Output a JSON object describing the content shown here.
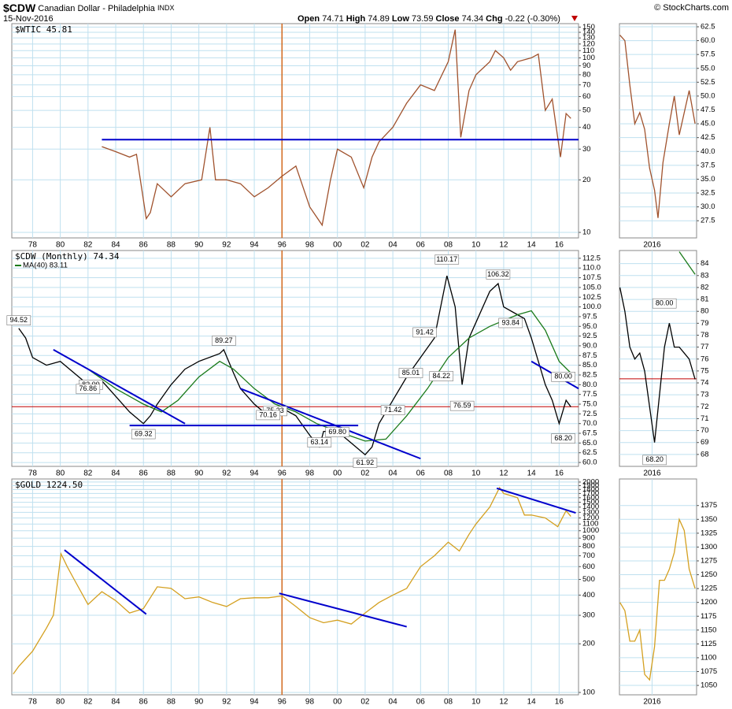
{
  "header": {
    "symbol": "$CDW",
    "name": "Canadian Dollar - Philadelphia",
    "exchange": "INDX",
    "date": "15-Nov-2016",
    "credit": "© StockCharts.com",
    "quote": [
      {
        "label": "Open",
        "value": 74.71
      },
      {
        "label": "High",
        "value": 74.89
      },
      {
        "label": "Low",
        "value": 73.59
      },
      {
        "label": "Close",
        "value": 74.34
      },
      {
        "label": "Chg",
        "value": "-0.22 (-0.30%)"
      }
    ]
  },
  "chart_data": [
    {
      "type": "line",
      "log": true,
      "grid": true,
      "x": [
        1983.0,
        1984.0,
        1985.0,
        1985.5,
        1986.2,
        1986.5,
        1987.0,
        1988.0,
        1989.0,
        1990.2,
        1990.8,
        1991.2,
        1992.0,
        1993.0,
        1994.0,
        1995.0,
        1996.0,
        1997.0,
        1998.0,
        1998.9,
        1999.5,
        2000.0,
        2001.0,
        2001.9,
        2002.5,
        2003.0,
        2004.0,
        2005.0,
        2006.0,
        2007.0,
        2008.0,
        2008.5,
        2008.9,
        2009.5,
        2010.0,
        2011.0,
        2011.4,
        2012.0,
        2012.5,
        2013.0,
        2014.0,
        2014.5,
        2015.0,
        2015.5,
        2016.1,
        2016.5,
        2016.85
      ],
      "series": [
        {
          "name": "$WTIC 45.81",
          "color": "#a0522d",
          "values": [
            31,
            29,
            27,
            28,
            12,
            13,
            19,
            16,
            19,
            20,
            40,
            20,
            20,
            19,
            16,
            18,
            21,
            24,
            14,
            11,
            20,
            30,
            27,
            18,
            27,
            33,
            40,
            55,
            70,
            65,
            95,
            145,
            35,
            65,
            80,
            95,
            110,
            100,
            85,
            95,
            100,
            105,
            50,
            58,
            27,
            48,
            45
          ]
        }
      ],
      "xlim": [
        1976.5,
        2017.4
      ],
      "ylim": [
        9.3,
        157
      ],
      "xticks": [
        {
          "value": 1978,
          "label": "78"
        },
        {
          "value": 1980,
          "label": "80"
        },
        {
          "value": 1982,
          "label": "82"
        },
        {
          "value": 1984,
          "label": "84"
        },
        {
          "value": 1986,
          "label": "86"
        },
        {
          "value": 1988,
          "label": "88"
        },
        {
          "value": 1990,
          "label": "90"
        },
        {
          "value": 1992,
          "label": "92"
        },
        {
          "value": 1994,
          "label": "94"
        },
        {
          "value": 1996,
          "label": "96"
        },
        {
          "value": 1998,
          "label": "98"
        },
        {
          "value": 2000,
          "label": "00"
        },
        {
          "value": 2002,
          "label": "02"
        },
        {
          "value": 2004,
          "label": "04"
        },
        {
          "value": 2006,
          "label": "06"
        },
        {
          "value": 2008,
          "label": "08"
        },
        {
          "value": 2010,
          "label": "10"
        },
        {
          "value": 2012,
          "label": "12"
        },
        {
          "value": 2014,
          "label": "14"
        },
        {
          "value": 2016,
          "label": "16"
        }
      ],
      "yticks": [
        10,
        20,
        30,
        40,
        50,
        60,
        70,
        80,
        90,
        100,
        110,
        120,
        130,
        140,
        150
      ],
      "vlines": [
        {
          "value": 1996,
          "color": "#d2691e"
        }
      ],
      "trendlines": [
        {
          "x": [
            1983.0,
            2017.4
          ],
          "y": [
            34,
            34
          ],
          "color": "#0000cc"
        }
      ]
    },
    {
      "type": "line",
      "grid": true,
      "x": [
        2015.35,
        2015.45,
        2015.55,
        2015.65,
        2015.75,
        2015.85,
        2015.95,
        2016.05,
        2016.12,
        2016.22,
        2016.35,
        2016.45,
        2016.55,
        2016.65,
        2016.75,
        2016.87
      ],
      "series": [
        {
          "color": "#a0522d",
          "values": [
            61,
            60,
            52,
            45,
            47,
            44,
            37,
            33,
            28,
            38,
            45,
            50,
            43,
            47,
            51,
            45
          ]
        }
      ],
      "xlim": [
        2015.34,
        2016.9
      ],
      "ylim": [
        24.4,
        63.07
      ],
      "xticks": [
        {
          "value": 2016,
          "label": "2016"
        }
      ],
      "yticks": [
        {
          "value": 27.5,
          "label": "27.5"
        },
        {
          "value": 30,
          "label": "30.0"
        },
        {
          "value": 32.5,
          "label": "32.5"
        },
        {
          "value": 35,
          "label": "35.0"
        },
        {
          "value": 37.5,
          "label": "37.5"
        },
        {
          "value": 40,
          "label": "40.0"
        },
        {
          "value": 42.5,
          "label": "42.5"
        },
        {
          "value": 45,
          "label": "45.0"
        },
        {
          "value": 47.5,
          "label": "47.5"
        },
        {
          "value": 50,
          "label": "50.0"
        },
        {
          "value": 52.5,
          "label": "52.5"
        },
        {
          "value": 55,
          "label": "55.0"
        },
        {
          "value": 57.5,
          "label": "57.5"
        },
        {
          "value": 60,
          "label": "60.0"
        },
        {
          "value": 62.5,
          "label": "62.5"
        }
      ]
    },
    {
      "type": "line",
      "grid": true,
      "x": [
        1977.0,
        1977.5,
        1978.0,
        1979.0,
        1980.0,
        1981.0,
        1982.0,
        1983.0,
        1984.0,
        1985.0,
        1986.0,
        1986.5,
        1987.0,
        1988.0,
        1989.0,
        1990.0,
        1991.5,
        1991.8,
        1992.5,
        1993.0,
        1994.0,
        1995.0,
        1995.5,
        1996.0,
        1997.0,
        1998.0,
        1998.7,
        1999.0,
        2000.0,
        2001.0,
        2002.0,
        2002.5,
        2003.0,
        2004.0,
        2005.0,
        2006.0,
        2007.0,
        2007.9,
        2008.5,
        2009.0,
        2009.5,
        2010.0,
        2011.0,
        2011.6,
        2012.0,
        2013.0,
        2013.5,
        2014.0,
        2015.0,
        2015.5,
        2016.0,
        2016.5,
        2016.85
      ],
      "series": [
        {
          "name": "$CDW (Monthly) 74.34",
          "color": "#000000",
          "values": [
            94.5,
            92,
            87,
            85,
            86,
            83,
            80,
            81,
            77,
            73,
            70,
            72,
            75,
            80,
            84,
            86,
            88,
            89,
            83,
            79,
            75,
            72,
            74,
            74,
            72,
            67,
            64,
            68,
            68,
            65,
            62,
            64,
            70,
            76,
            82,
            87,
            92,
            108,
            100,
            80,
            92,
            96,
            104,
            106,
            100,
            98,
            97,
            92,
            80,
            76,
            70,
            76,
            74.3
          ]
        },
        {
          "name": "MA(40) 83.11",
          "color": "#1a7a1a",
          "x": [
            1980.5,
            1982.0,
            1984.0,
            1986.0,
            1987.3,
            1988.5,
            1990.0,
            1991.5,
            1992.5,
            1994.0,
            1995.5,
            1997.0,
            1998.5,
            2000.0,
            2002.0,
            2003.5,
            2005.0,
            2006.5,
            2008.0,
            2009.5,
            2011.0,
            2013.0,
            2014.0,
            2015.0,
            2016.0,
            2016.85
          ],
          "values": [
            87,
            84,
            79,
            75,
            73,
            76,
            82,
            86,
            84,
            79,
            75,
            73,
            70,
            68,
            65.5,
            66,
            72,
            79,
            87,
            92,
            95,
            98,
            99,
            94,
            86,
            83
          ]
        }
      ],
      "xlim": [
        1976.5,
        2017.4
      ],
      "ylim": [
        59,
        114.5
      ],
      "yticks": [
        {
          "value": 60,
          "label": "60.0"
        },
        {
          "value": 62.5,
          "label": "62.5"
        },
        {
          "value": 65,
          "label": "65.0"
        },
        {
          "value": 67.5,
          "label": "67.5"
        },
        {
          "value": 70,
          "label": "70.0"
        },
        {
          "value": 72.5,
          "label": "72.5"
        },
        {
          "value": 75,
          "label": "75.0"
        },
        {
          "value": 77.5,
          "label": "77.5"
        },
        {
          "value": 80,
          "label": "80.0"
        },
        {
          "value": 82.5,
          "label": "82.5"
        },
        {
          "value": 85,
          "label": "85.0"
        },
        {
          "value": 87.5,
          "label": "87.5"
        },
        {
          "value": 90,
          "label": "90.0"
        },
        {
          "value": 92.5,
          "label": "92.5"
        },
        {
          "value": 95,
          "label": "95.0"
        },
        {
          "value": 97.5,
          "label": "97.5"
        },
        {
          "value": 100,
          "label": "100.0"
        },
        {
          "value": 102.5,
          "label": "102.5"
        },
        {
          "value": 105,
          "label": "105.0"
        },
        {
          "value": 107.5,
          "label": "107.5"
        },
        {
          "value": 110,
          "label": "110.0"
        },
        {
          "value": 112.5,
          "label": "112.5"
        }
      ],
      "vlines": [
        {
          "value": 1996,
          "color": "#d2691e"
        }
      ],
      "hlines": [
        {
          "value": 74.34,
          "color": "#c00000"
        }
      ],
      "trendlines": [
        {
          "x": [
            1979.5,
            1989.0
          ],
          "y": [
            89,
            70
          ],
          "color": "#0000cc"
        },
        {
          "x": [
            1985.0,
            2001.5
          ],
          "y": [
            69.5,
            69.5
          ],
          "color": "#0000cc"
        },
        {
          "x": [
            1993.0,
            2006.0
          ],
          "y": [
            79,
            61
          ],
          "color": "#0000cc"
        },
        {
          "x": [
            2014.0,
            2017.4
          ],
          "y": [
            86,
            79
          ],
          "color": "#0000cc"
        }
      ],
      "annotations": [
        {
          "x": 1977.0,
          "value": 94.52,
          "label": "94.52"
        },
        {
          "x": 1982.2,
          "value": 82,
          "label": "82.00"
        },
        {
          "x": 1982.0,
          "value": 76.86,
          "label": "76.86"
        },
        {
          "x": 1986.0,
          "value": 69.32,
          "label": "69.32"
        },
        {
          "x": 1991.8,
          "value": 89.27,
          "label": "89.27"
        },
        {
          "x": 1995.5,
          "value": 75.23,
          "label": "75.23"
        },
        {
          "x": 1995.0,
          "value": 70.16,
          "label": "70.16"
        },
        {
          "x": 2000.0,
          "value": 69.8,
          "label": "69.80"
        },
        {
          "x": 1998.7,
          "value": 63.14,
          "label": "63.14"
        },
        {
          "x": 2002.0,
          "value": 61.92,
          "label": "61.92"
        },
        {
          "x": 2004.0,
          "value": 71.42,
          "label": "71.42"
        },
        {
          "x": 2005.3,
          "value": 85.01,
          "label": "85.01"
        },
        {
          "x": 2006.3,
          "value": 91.42,
          "label": "91.42"
        },
        {
          "x": 2007.5,
          "value": 84.22,
          "label": "84.22"
        },
        {
          "x": 2007.9,
          "value": 110.17,
          "label": "110.17"
        },
        {
          "x": 2009.0,
          "value": 76.59,
          "label": "76.59"
        },
        {
          "x": 2011.6,
          "value": 106.32,
          "label": "106.32"
        },
        {
          "x": 2012.5,
          "value": 93.84,
          "label": "93.84"
        },
        {
          "x": 2016.3,
          "value": 80,
          "label": "80.00"
        },
        {
          "x": 2016.3,
          "value": 68.2,
          "label": "68.20"
        }
      ]
    },
    {
      "type": "line",
      "grid": true,
      "x": [
        2015.35,
        2015.45,
        2015.55,
        2015.65,
        2015.75,
        2015.85,
        2015.95,
        2016.05,
        2016.15,
        2016.25,
        2016.35,
        2016.45,
        2016.55,
        2016.65,
        2016.75,
        2016.87
      ],
      "series": [
        {
          "color": "#000000",
          "values": [
            82,
            80,
            77,
            76,
            76.5,
            75,
            72,
            69,
            73,
            77,
            79,
            77,
            77,
            76.5,
            76,
            74.3
          ]
        },
        {
          "color": "#1a7a1a",
          "x": [
            2016.55,
            2016.87
          ],
          "values": [
            85,
            83.1
          ]
        }
      ],
      "xlim": [
        2015.34,
        2016.9
      ],
      "ylim": [
        67,
        85.1
      ],
      "xticks": [
        {
          "value": 2016,
          "label": "2016"
        }
      ],
      "yticks": [
        68,
        69,
        70,
        71,
        72,
        73,
        74,
        75,
        76,
        77,
        78,
        79,
        80,
        81,
        82,
        83,
        84
      ],
      "hlines": [
        {
          "value": 74.34,
          "color": "#c00000"
        }
      ],
      "annotations": [
        {
          "x": 2016.25,
          "value": 80,
          "label": "80.00"
        },
        {
          "x": 2016.05,
          "value": 68.2,
          "label": "68.20"
        }
      ]
    },
    {
      "type": "line",
      "log": true,
      "grid": true,
      "x": [
        1976.6,
        1977.0,
        1978.0,
        1979.0,
        1979.5,
        1980.05,
        1980.5,
        1981.0,
        1982.0,
        1983.0,
        1984.0,
        1985.0,
        1986.0,
        1987.0,
        1988.0,
        1989.0,
        1990.0,
        1991.0,
        1992.0,
        1993.0,
        1994.0,
        1995.0,
        1996.0,
        1997.0,
        1998.0,
        1999.0,
        2000.0,
        2001.0,
        2002.0,
        2003.0,
        2004.0,
        2005.0,
        2006.0,
        2007.0,
        2008.0,
        2008.8,
        2009.5,
        2010.0,
        2011.0,
        2011.7,
        2012.0,
        2013.0,
        2013.5,
        2014.0,
        2015.0,
        2015.9,
        2016.5,
        2016.85
      ],
      "series": [
        {
          "name": "$GOLD 1224.50",
          "color": "#d4a020",
          "values": [
            130,
            145,
            180,
            250,
            300,
            720,
            600,
            500,
            350,
            420,
            370,
            310,
            330,
            450,
            440,
            380,
            390,
            360,
            340,
            380,
            385,
            385,
            395,
            340,
            290,
            270,
            280,
            265,
            310,
            360,
            400,
            440,
            600,
            700,
            850,
            750,
            950,
            1100,
            1400,
            1850,
            1700,
            1600,
            1250,
            1250,
            1200,
            1060,
            1330,
            1225
          ]
        }
      ],
      "xlim": [
        1976.5,
        2017.4
      ],
      "ylim": [
        96.7,
        2090
      ],
      "yticks": [
        100,
        200,
        300,
        400,
        500,
        600,
        700,
        800,
        900,
        1000,
        1100,
        1200,
        1300,
        1400,
        1500,
        1600,
        1700,
        1800,
        1900,
        2000
      ],
      "vlines": [
        {
          "value": 1996,
          "color": "#d2691e"
        }
      ],
      "trendlines": [
        {
          "x": [
            1980.3,
            1986.2
          ],
          "y": [
            760,
            305
          ],
          "color": "#0000cc"
        },
        {
          "x": [
            1995.8,
            2005.0
          ],
          "y": [
            410,
            255
          ],
          "color": "#0000cc"
        },
        {
          "x": [
            2011.5,
            2017.2
          ],
          "y": [
            1830,
            1290
          ],
          "color": "#0000cc"
        }
      ]
    },
    {
      "type": "line",
      "grid": true,
      "x": [
        2015.35,
        2015.45,
        2015.55,
        2015.65,
        2015.75,
        2015.85,
        2015.95,
        2016.05,
        2016.15,
        2016.25,
        2016.35,
        2016.45,
        2016.55,
        2016.65,
        2016.75,
        2016.87
      ],
      "series": [
        {
          "color": "#d4a020",
          "values": [
            1200,
            1185,
            1130,
            1130,
            1150,
            1070,
            1060,
            1120,
            1240,
            1240,
            1260,
            1290,
            1350,
            1330,
            1260,
            1225
          ]
        }
      ],
      "xlim": [
        2015.34,
        2016.9
      ],
      "ylim": [
        1033,
        1423
      ],
      "xticks": [
        {
          "value": 2016,
          "label": "2016"
        }
      ],
      "yticks": [
        1050,
        1075,
        1100,
        1125,
        1150,
        1175,
        1200,
        1225,
        1250,
        1275,
        1300,
        1325,
        1350,
        1375
      ]
    }
  ]
}
